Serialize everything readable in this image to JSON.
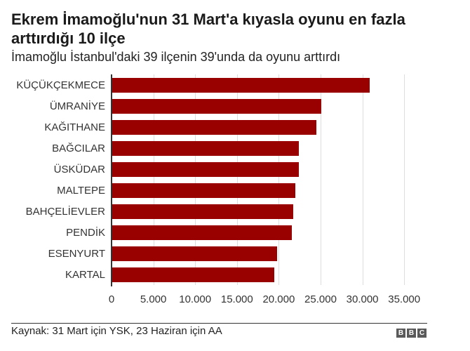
{
  "header": {
    "title": "Ekrem İmamoğlu'nun 31 Mart'a kıyasla oyunu en fazla arttırdığı 10 ilçe",
    "subtitle": "İmamoğlu İstanbul'daki 39 ilçenin 39'unda da oyunu arttırdı"
  },
  "footer": {
    "source": "Kaynak: 31 Mart için YSK, 23 Haziran için AA",
    "logo": [
      "B",
      "B",
      "C"
    ]
  },
  "colors": {
    "bar": "#990000",
    "grid": "#dddddd",
    "axis": "#333333"
  },
  "chart_data": {
    "type": "bar",
    "orientation": "horizontal",
    "title": "Ekrem İmamoğlu'nun 31 Mart'a kıyasla oyunu en fazla arttırdığı 10 ilçe",
    "subtitle": "İmamoğlu İstanbul'daki 39 ilçenin 39'unda da oyunu arttırdı",
    "categories": [
      "KÜÇÜKÇEKMECE",
      "ÜMRANİYE",
      "KAĞITHANE",
      "BAĞCILAR",
      "ÜSKÜDAR",
      "MALTEPE",
      "BAHÇELİEVLER",
      "PENDİK",
      "ESENYURT",
      "KARTAL"
    ],
    "values": [
      30900,
      25100,
      24500,
      22400,
      22400,
      22000,
      21700,
      21600,
      19800,
      19500
    ],
    "xlabel": "",
    "ylabel": "",
    "xlim": [
      0,
      35000
    ],
    "xticks": [
      0,
      5000,
      10000,
      15000,
      20000,
      25000,
      30000,
      35000
    ],
    "xtick_labels": [
      "0",
      "5.000",
      "10.000",
      "15.000",
      "20.000",
      "25.000",
      "30.000",
      "35.000"
    ],
    "grid": true,
    "legend": null,
    "source": "Kaynak: 31 Mart için YSK, 23 Haziran için AA"
  }
}
